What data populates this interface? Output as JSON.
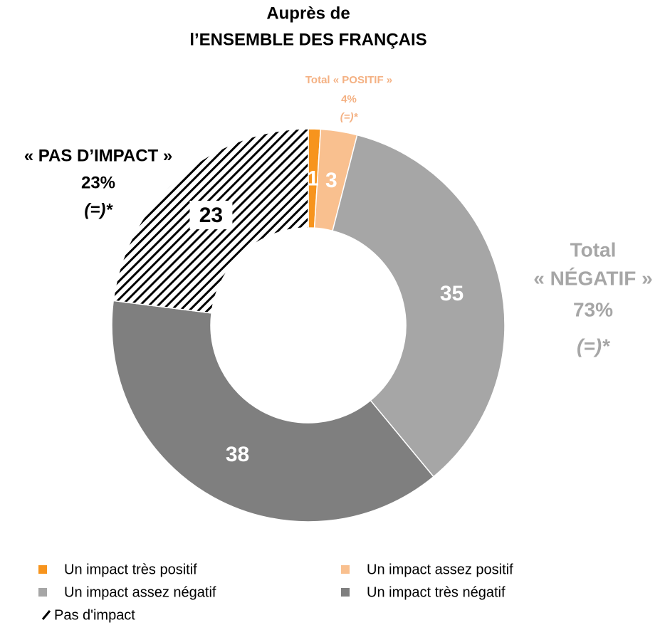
{
  "chart_data": {
    "type": "donut",
    "title_lines": [
      "Auprès de",
      "l’ENSEMBLE DES FRANÇAIS"
    ],
    "categories": [
      "Un impact très positif",
      "Un impact assez positif",
      "Un impact assez négatif",
      "Un impact très négatif",
      "Pas d'impact"
    ],
    "values": [
      1,
      3,
      35,
      38,
      23
    ],
    "colors": [
      "#f7941d",
      "#f9c08f",
      "#a6a6a6",
      "#7f7f7f",
      "#000000"
    ],
    "hatched": [
      false,
      false,
      false,
      false,
      true
    ],
    "annotations": [
      {
        "lines": [
          "Total « POSITIF »",
          "4%",
          "(=)*"
        ],
        "color": "#f4b183"
      },
      {
        "lines": [
          "«  PAS D’IMPACT »",
          "23%",
          "(=)*"
        ],
        "color": "#000000"
      },
      {
        "lines": [
          "Total",
          "«  NÉGATIF »",
          "73%",
          "(=)*"
        ],
        "color": "#a6a6a6"
      }
    ]
  }
}
